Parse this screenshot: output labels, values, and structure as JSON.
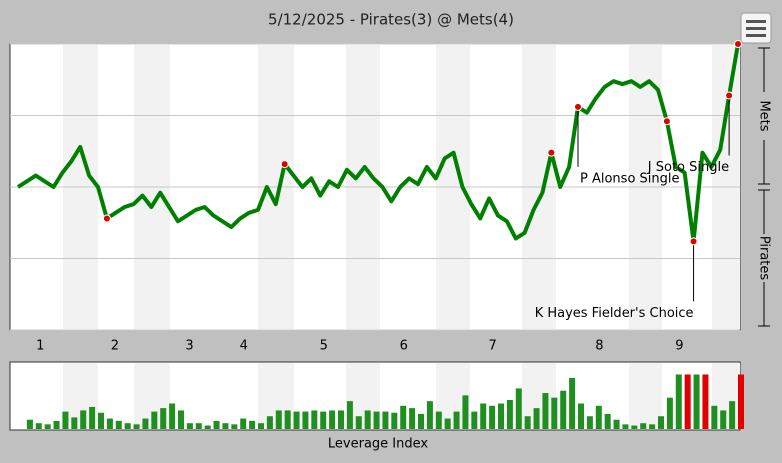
{
  "chart_data": [
    {
      "type": "line",
      "title": "5/12/2025 - Pirates(3) @ Mets(4)",
      "color": "#008000",
      "marker_color": "#e00000",
      "values": [
        50,
        52,
        54,
        52,
        50,
        55,
        59,
        64,
        54,
        50,
        39,
        41,
        43,
        44,
        47,
        43,
        48,
        43,
        38,
        40,
        42,
        43,
        40,
        38,
        36,
        39,
        41,
        42,
        50,
        44,
        58,
        54,
        50,
        53,
        47,
        52,
        50,
        56,
        53,
        57,
        53,
        50,
        45,
        50,
        53,
        51,
        57,
        53,
        60,
        62,
        50,
        44,
        39,
        46,
        40,
        38,
        32,
        34,
        42,
        48,
        62,
        50,
        57,
        78,
        76,
        81,
        85,
        87,
        86,
        87,
        85,
        87,
        84,
        73,
        57,
        55,
        31,
        62,
        57,
        63,
        82,
        100
      ],
      "highlighted": [
        10,
        30,
        60,
        63,
        73,
        76,
        80,
        81
      ],
      "xlim": [
        0,
        81
      ],
      "xticks": [
        {
          "value": 2.5,
          "label": "1"
        },
        {
          "value": 10.9,
          "label": "2"
        },
        {
          "value": 19.3,
          "label": "3"
        },
        {
          "value": 25.4,
          "label": "4"
        },
        {
          "value": 34.4,
          "label": "5"
        },
        {
          "value": 43.4,
          "label": "6"
        },
        {
          "value": 53.4,
          "label": "7"
        },
        {
          "value": 65.4,
          "label": "8"
        },
        {
          "value": 74.4,
          "label": "9"
        }
      ],
      "ylim": [
        0,
        100
      ],
      "yticks": [
        0,
        25,
        50,
        75,
        100
      ],
      "grid": true,
      "top_label": "Mets",
      "bottom_label": "Pirates",
      "annotations": [
        {
          "text": "P Alonso Single",
          "x": 63
        },
        {
          "text": "J Soto Single",
          "x": 80
        },
        {
          "text": "K Hayes Fielder's Choice",
          "x": 76
        }
      ]
    },
    {
      "type": "bar",
      "x_label": "Leverage Index",
      "color": "#1f8f1f",
      "highlight_color": "#e00000",
      "values": [
        0.8,
        0.5,
        0.4,
        0.7,
        1.5,
        1.0,
        1.6,
        1.9,
        1.4,
        0.9,
        0.7,
        0.5,
        0.4,
        0.9,
        1.5,
        1.8,
        2.2,
        1.6,
        0.5,
        0.5,
        0.3,
        0.7,
        0.5,
        0.4,
        0.9,
        0.7,
        0.5,
        1.1,
        1.6,
        1.6,
        1.5,
        1.5,
        1.6,
        1.5,
        1.6,
        1.6,
        2.4,
        1.1,
        1.6,
        1.5,
        1.5,
        1.4,
        2.0,
        1.8,
        1.3,
        2.4,
        1.5,
        0.9,
        1.5,
        2.9,
        1.5,
        2.2,
        2.0,
        2.2,
        2.5,
        3.5,
        1.1,
        1.8,
        3.1,
        2.7,
        3.3,
        4.4,
        2.2,
        1.1,
        2.0,
        1.3,
        0.8,
        0.4,
        0.3,
        0.5,
        0.4,
        1.1,
        2.7,
        4.7,
        4.7,
        4.7,
        4.7,
        2.0,
        1.6,
        2.4,
        4.7
      ],
      "highlighted": [
        74,
        76,
        80
      ],
      "ylim": [
        0,
        5
      ]
    }
  ]
}
